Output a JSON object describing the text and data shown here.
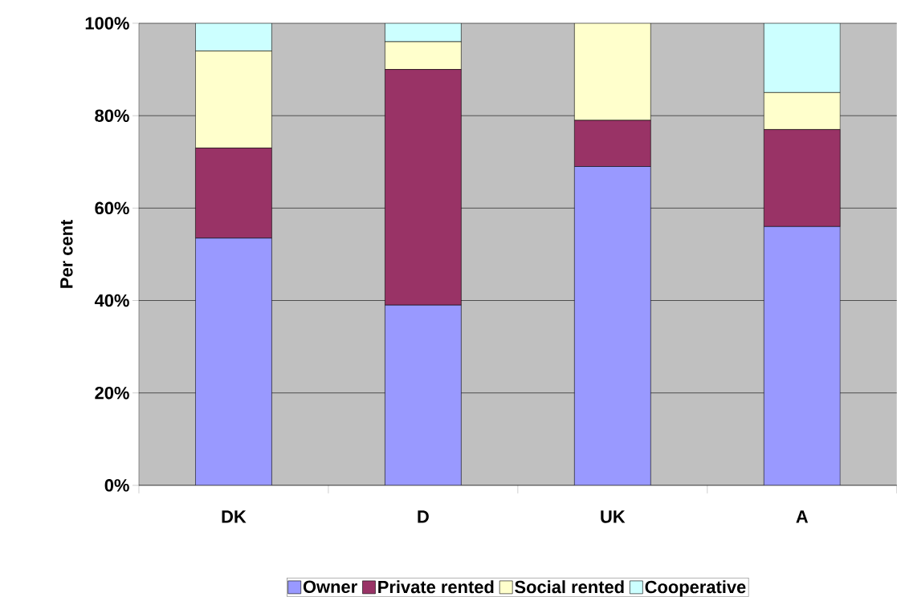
{
  "chart_data": {
    "type": "bar",
    "stacked": true,
    "ylabel": "Per cent",
    "categories": [
      "DK",
      "D",
      "UK",
      "A"
    ],
    "series": [
      {
        "name": "Owner",
        "color": "#9999ff",
        "values": [
          53.5,
          39,
          69,
          56
        ]
      },
      {
        "name": "Private rented",
        "color": "#993366",
        "values": [
          19.5,
          51,
          10,
          21
        ]
      },
      {
        "name": "Social rented",
        "color": "#ffffcc",
        "values": [
          21,
          6,
          21,
          8
        ]
      },
      {
        "name": "Cooperative",
        "color": "#ccffff",
        "values": [
          6,
          4,
          0,
          15
        ]
      }
    ],
    "ylim": [
      0,
      100
    ],
    "yticks": [
      {
        "value": 0,
        "label": "0%"
      },
      {
        "value": 20,
        "label": "20%"
      },
      {
        "value": 40,
        "label": "40%"
      },
      {
        "value": 60,
        "label": "60%"
      },
      {
        "value": 80,
        "label": "80%"
      },
      {
        "value": 100,
        "label": "100%"
      }
    ],
    "grid": "y",
    "legend": "bottom"
  }
}
